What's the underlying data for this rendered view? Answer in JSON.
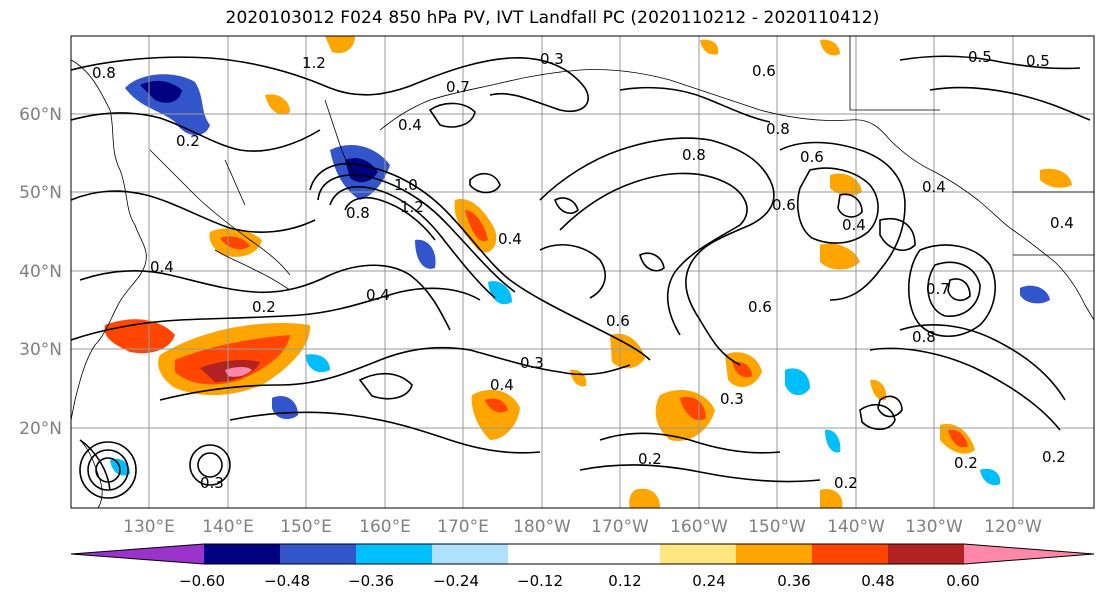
{
  "title": "2020103012 F024 850 hPa PV, IVT Landfall PC (2020110212 - 2020110412)",
  "lat_labels": [
    "60°N",
    "50°N",
    "40°N",
    "30°N",
    "20°N"
  ],
  "lon_labels": [
    "130°E",
    "140°E",
    "150°E",
    "160°E",
    "170°E",
    "180°W",
    "170°W",
    "160°W",
    "150°W",
    "140°W",
    "130°W",
    "120°W"
  ],
  "colorbar": {
    "colors": [
      "#9933cc",
      "#000080",
      "#3355cc",
      "#00bfff",
      "#b0e0ff",
      "#ffffff",
      "#ffffff",
      "#ffe680",
      "#ffa500",
      "#ff4500",
      "#b22222",
      "#ff88aa"
    ],
    "tick_labels": [
      "−0.60",
      "−0.48",
      "−0.36",
      "−0.24",
      "−0.12",
      "0.12",
      "0.24",
      "0.36",
      "0.48",
      "0.60"
    ]
  },
  "contour_labels": [
    "0.8",
    "1.2",
    "0.4",
    "0.3",
    "0.7",
    "0.6",
    "0.5",
    "0.8",
    "0.8",
    "0.6",
    "0.4",
    "1.0",
    "1.2",
    "0.8",
    "0.4",
    "0.4",
    "0.2",
    "0.4",
    "0.6",
    "0.6",
    "0.6",
    "0.4",
    "0.3",
    "0.3",
    "0.4",
    "0.2",
    "0.2",
    "0.2",
    "0.2",
    "0.8",
    "0.7",
    "0.5",
    "0.4",
    "0.3",
    "0.2"
  ]
}
